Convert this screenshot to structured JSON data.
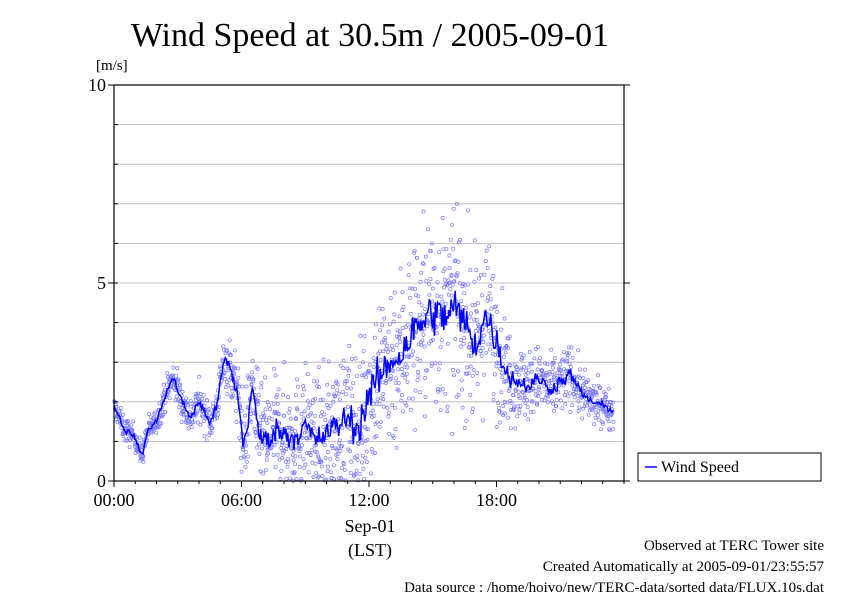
{
  "chart_data": {
    "type": "scatter",
    "title": "Wind Speed at 30.5m / 2005-09-01",
    "ylabel": "[m/s]",
    "xlabel": "(LST)",
    "date_label": "Sep-01",
    "ylim": [
      0,
      10
    ],
    "xlim_hours": [
      0,
      24
    ],
    "y_ticks": [
      0,
      5,
      10
    ],
    "y_tick_labels": [
      "0",
      "5",
      "10"
    ],
    "y_gridlines": [
      1,
      2,
      3,
      4,
      5,
      6,
      7,
      8,
      9
    ],
    "x_ticks_hours": [
      0,
      6,
      12,
      18
    ],
    "x_tick_labels": [
      "00:00",
      "06:00",
      "12:00",
      "18:00"
    ],
    "legend": [
      "Wind Speed"
    ],
    "legend_position": "right-bottom",
    "series": [
      {
        "name": "Wind Speed",
        "color": "#0000ff",
        "scatter_color": "#7a7aff",
        "x_hours": [
          0.0,
          0.5,
          1.0,
          1.3,
          1.6,
          2.0,
          2.5,
          2.8,
          3.2,
          3.6,
          4.0,
          4.5,
          4.8,
          5.2,
          5.5,
          5.8,
          6.1,
          6.3,
          6.5,
          6.8,
          7.2,
          7.6,
          8.0,
          8.5,
          9.0,
          9.5,
          10.0,
          10.5,
          11.0,
          11.5,
          12.0,
          12.5,
          13.0,
          13.5,
          14.0,
          14.5,
          15.0,
          15.5,
          16.0,
          16.5,
          17.0,
          17.5,
          18.0,
          18.5,
          19.0,
          19.5,
          20.0,
          20.5,
          21.0,
          21.5,
          22.0,
          22.5,
          23.0,
          23.5
        ],
        "values": [
          1.9,
          1.3,
          1.1,
          0.6,
          1.3,
          1.5,
          2.3,
          2.6,
          2.0,
          1.6,
          2.0,
          1.5,
          1.8,
          3.1,
          2.8,
          2.2,
          0.9,
          1.5,
          2.4,
          1.2,
          1.0,
          1.3,
          1.2,
          1.1,
          1.4,
          1.0,
          1.2,
          1.4,
          1.6,
          1.3,
          2.2,
          2.6,
          3.0,
          3.2,
          3.7,
          4.0,
          4.3,
          4.1,
          4.4,
          4.0,
          3.4,
          4.2,
          3.5,
          2.7,
          2.5,
          2.4,
          2.6,
          2.3,
          2.5,
          2.7,
          2.2,
          2.0,
          1.9,
          1.8
        ],
        "scatter_spread": [
          0.15,
          0.2,
          0.2,
          0.2,
          0.2,
          0.2,
          0.25,
          0.3,
          0.3,
          0.3,
          0.3,
          0.3,
          0.3,
          0.4,
          0.5,
          0.6,
          0.7,
          0.7,
          0.7,
          0.8,
          0.8,
          0.8,
          0.9,
          0.9,
          0.9,
          0.9,
          1.0,
          1.0,
          1.1,
          1.2,
          1.3,
          1.3,
          1.4,
          1.4,
          1.5,
          1.5,
          1.6,
          1.5,
          1.5,
          1.4,
          1.3,
          1.2,
          1.1,
          0.8,
          0.6,
          0.55,
          0.5,
          0.5,
          0.5,
          0.45,
          0.4,
          0.35,
          0.3,
          0.3
        ]
      }
    ]
  },
  "footer": {
    "line1": "Observed at TERC Tower site",
    "line2": "Created Automatically at 2005-09-01/23:55:57",
    "line3": "Data source : /home/hoivo/new/TERC-data/sorted  data/FLUX.10s.dat"
  },
  "colors": {
    "line": "#0000ff",
    "scatter": "#7a7aff",
    "grid": "#b0b0b0",
    "frame": "#000000"
  }
}
